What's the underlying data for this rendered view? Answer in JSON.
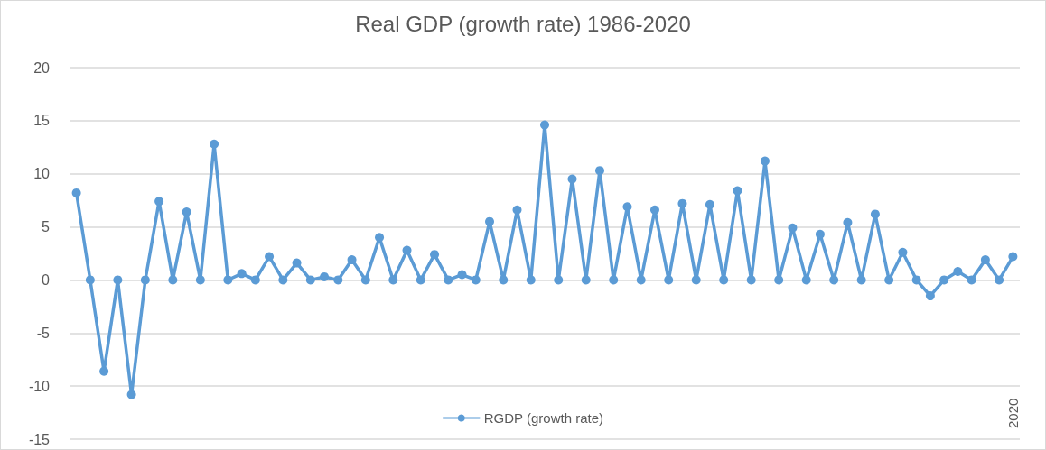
{
  "chart_data": {
    "type": "line",
    "title": "Real GDP (growth rate) 1986-2020",
    "categories": [
      null,
      null,
      null,
      null,
      null,
      null,
      null,
      null,
      null,
      null,
      null,
      null,
      null,
      null,
      null,
      null,
      null,
      null,
      null,
      null,
      null,
      null,
      null,
      null,
      null,
      null,
      null,
      null,
      null,
      null,
      null,
      null,
      null,
      null,
      null,
      null,
      null,
      null,
      null,
      null,
      null,
      null,
      null,
      null,
      null,
      null,
      null,
      null,
      null,
      null,
      null,
      null,
      null,
      null,
      null,
      null,
      null,
      null,
      null,
      null,
      null,
      null,
      null,
      null,
      null,
      null,
      null,
      null,
      "2020"
    ],
    "series": [
      {
        "name": "RGDP (growth rate)",
        "color": "#5b9bd5",
        "values": [
          8.2,
          0,
          -8.6,
          0,
          -10.8,
          0,
          7.4,
          0,
          6.4,
          0,
          12.8,
          0,
          0.6,
          0,
          2.2,
          0,
          1.6,
          0,
          0.3,
          0,
          1.9,
          0,
          4.0,
          0,
          2.8,
          0,
          2.4,
          0,
          0.5,
          0,
          5.5,
          0,
          6.6,
          0,
          14.6,
          0,
          9.5,
          0,
          10.3,
          0,
          6.9,
          0,
          6.6,
          0,
          7.2,
          0,
          7.1,
          0,
          8.4,
          0,
          11.2,
          0,
          4.9,
          0,
          4.3,
          0,
          5.4,
          0,
          6.2,
          0,
          2.6,
          0,
          -1.5,
          0,
          0.8,
          0,
          1.9,
          0,
          2.2
        ]
      }
    ],
    "ylim": [
      -15,
      20
    ],
    "yticks": [
      -15,
      -10,
      -5,
      0,
      5,
      10,
      15,
      20
    ],
    "grid": "y",
    "legend": "bottom",
    "marker": "circle",
    "line_style": "solid"
  }
}
